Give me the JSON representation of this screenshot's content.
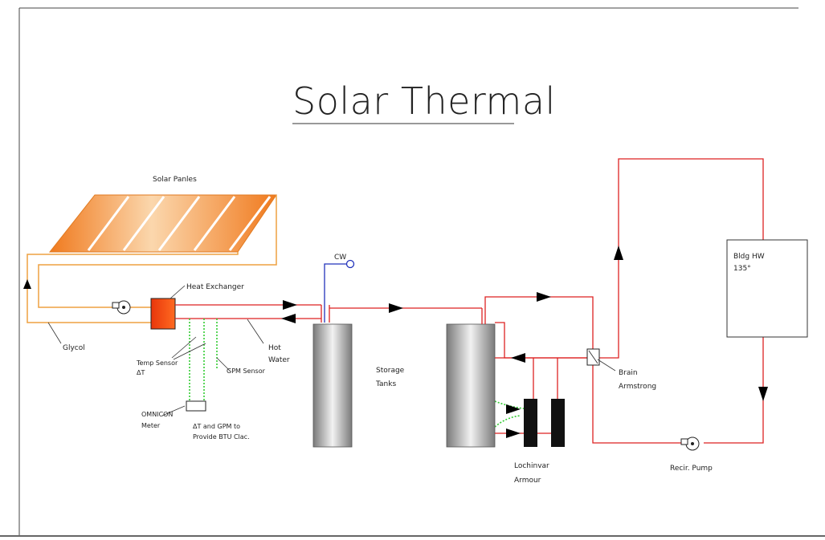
{
  "title": "Solar Thermal",
  "labels": {
    "solar_panels": "Solar Panles",
    "heat_exchanger": "Heat Exchanger",
    "glycol": "Glycol",
    "temp_sensor": [
      "Temp Sensor",
      "ΔT"
    ],
    "gpm_sensor": "GPM Sensor",
    "hot_water": [
      "Hot",
      "Water"
    ],
    "cw": "CW",
    "omnicon_meter": [
      "OMNICON",
      "Meter"
    ],
    "btu_note": [
      "ΔT and GPM to",
      "Provide BTU Clac."
    ],
    "storage_tanks": [
      "Storage",
      "Tanks"
    ],
    "lochinvar": [
      "Lochinvar",
      "Armour"
    ],
    "brain_armstrong": [
      "Brain",
      "Armstrong"
    ],
    "bldg_hw": [
      "Bldg HW",
      "135°"
    ],
    "recir_pump": "Recir. Pump"
  },
  "colors": {
    "hot_line": "#dd2222",
    "glycol_line": "#eea040",
    "cold_water_line": "#2233bb",
    "sensor_wire": "#33cc33",
    "panel_fill": "#f07a1e",
    "heat_exchanger_fill": "#e83a10",
    "tank_fill": "#9a9a9a",
    "heater_fill": "#111111"
  }
}
